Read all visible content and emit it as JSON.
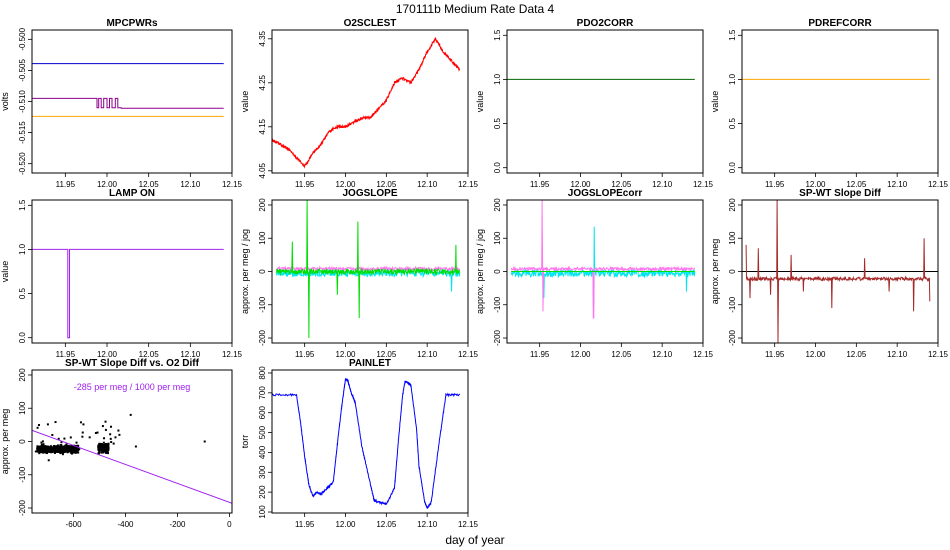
{
  "figure": {
    "title": "170111b   Medium Rate Data 4",
    "xlabel": "day of year"
  },
  "chart_data": [
    {
      "id": "mpcpwrs",
      "type": "line",
      "title": "MPCPWRs",
      "ylabel": "volts",
      "xlim": [
        11.91,
        12.15
      ],
      "ylim": [
        -0.5215,
        -0.4985
      ],
      "xticks": [
        11.95,
        12.0,
        12.05,
        12.1,
        12.15
      ],
      "xtick_labels": [
        "11.95",
        "12.00",
        "12.05",
        "12.10",
        "12.15"
      ],
      "yticks": [
        -0.52,
        -0.515,
        -0.51,
        -0.505,
        -0.5
      ],
      "ytick_labels": [
        "-0.520",
        "-0.515",
        "-0.510",
        "-0.505",
        "-0.500"
      ],
      "series": [
        {
          "color": "#0000cc",
          "x": [
            11.91,
            12.14
          ],
          "y": [
            -0.5039,
            -0.5039
          ]
        },
        {
          "color": "#8b008b",
          "x": [
            11.91,
            11.988,
            11.988,
            11.99,
            11.99,
            11.993,
            11.993,
            11.996,
            11.996,
            12.0,
            12.0,
            12.003,
            12.003,
            12.006,
            12.006,
            12.01,
            12.01,
            12.013,
            12.013,
            12.017,
            12.017,
            12.14
          ],
          "y": [
            -0.5095,
            -0.5095,
            -0.511,
            -0.511,
            -0.5095,
            -0.5095,
            -0.511,
            -0.511,
            -0.5095,
            -0.5095,
            -0.511,
            -0.511,
            -0.5095,
            -0.5095,
            -0.511,
            -0.511,
            -0.5095,
            -0.5095,
            -0.511,
            -0.511,
            -0.5111,
            -0.5111
          ]
        },
        {
          "color": "#ffa500",
          "x": [
            11.91,
            12.14
          ],
          "y": [
            -0.5124,
            -0.5124
          ]
        }
      ]
    },
    {
      "id": "o2sclest",
      "type": "line",
      "title": "O2SCLEST",
      "ylabel": "value",
      "xlim": [
        11.91,
        12.15
      ],
      "ylim": [
        4.045,
        4.37
      ],
      "xticks": [
        11.95,
        12.0,
        12.05,
        12.1,
        12.15
      ],
      "xtick_labels": [
        "11.95",
        "12.00",
        "12.05",
        "12.10",
        "12.15"
      ],
      "yticks": [
        4.05,
        4.15,
        4.25,
        4.35
      ],
      "ytick_labels": [
        "4.05",
        "4.15",
        "4.25",
        "4.35"
      ],
      "series": [
        {
          "color": "#ff0000",
          "x": [
            11.91,
            11.92,
            11.93,
            11.94,
            11.95,
            11.96,
            11.97,
            11.98,
            11.99,
            12.0,
            12.01,
            12.02,
            12.03,
            12.04,
            12.05,
            12.06,
            12.07,
            12.08,
            12.09,
            12.1,
            12.11,
            12.12,
            12.13,
            12.14
          ],
          "y": [
            4.12,
            4.11,
            4.1,
            4.08,
            4.06,
            4.09,
            4.11,
            4.14,
            4.15,
            4.15,
            4.16,
            4.17,
            4.17,
            4.19,
            4.21,
            4.25,
            4.26,
            4.25,
            4.28,
            4.32,
            4.35,
            4.32,
            4.3,
            4.28
          ]
        }
      ]
    },
    {
      "id": "pdo2corr",
      "type": "line",
      "title": "PDO2CORR",
      "ylabel": "value",
      "xlim": [
        11.91,
        12.15
      ],
      "ylim": [
        -0.06,
        1.56
      ],
      "xticks": [
        11.95,
        12.0,
        12.05,
        12.1,
        12.15
      ],
      "xtick_labels": [
        "11.95",
        "12.00",
        "12.05",
        "12.10",
        "12.15"
      ],
      "yticks": [
        0,
        0.5,
        1.0,
        1.5
      ],
      "ytick_labels": [
        "0.0",
        "0.5",
        "1.0",
        "1.5"
      ],
      "series": [
        {
          "color": "#006400",
          "x": [
            11.91,
            12.14
          ],
          "y": [
            1.0,
            1.0
          ]
        }
      ]
    },
    {
      "id": "pdrefcorr",
      "type": "line",
      "title": "PDREFCORR",
      "ylabel": "value",
      "xlim": [
        11.91,
        12.15
      ],
      "ylim": [
        -0.06,
        1.56
      ],
      "xticks": [
        11.95,
        12.0,
        12.05,
        12.1,
        12.15
      ],
      "xtick_labels": [
        "11.95",
        "12.00",
        "12.05",
        "12.10",
        "12.15"
      ],
      "yticks": [
        0,
        0.5,
        1.0,
        1.5
      ],
      "ytick_labels": [
        "0.0",
        "0.5",
        "1.0",
        "1.5"
      ],
      "series": [
        {
          "color": "#ffa500",
          "x": [
            11.91,
            12.14
          ],
          "y": [
            1.0,
            1.0
          ]
        }
      ]
    },
    {
      "id": "lamp_on",
      "type": "line",
      "title": "LAMP ON",
      "ylabel": "value",
      "xlim": [
        11.91,
        12.15
      ],
      "ylim": [
        -0.06,
        1.56
      ],
      "xticks": [
        11.95,
        12.0,
        12.05,
        12.1,
        12.15
      ],
      "xtick_labels": [
        "11.95",
        "12.00",
        "12.05",
        "12.10",
        "12.15"
      ],
      "yticks": [
        0,
        0.5,
        1.0,
        1.5
      ],
      "ytick_labels": [
        "0.0",
        "0.5",
        "1.0",
        "1.5"
      ],
      "series": [
        {
          "color": "#a020f0",
          "x": [
            11.91,
            11.953,
            11.953,
            11.955,
            11.955,
            12.14
          ],
          "y": [
            1.0,
            1.0,
            0.0,
            0.0,
            1.0,
            1.0
          ]
        }
      ]
    },
    {
      "id": "jogslope",
      "type": "line",
      "title": "JOGSLOPE",
      "ylabel": "approx. per meg / jog",
      "xlim": [
        11.91,
        12.15
      ],
      "ylim": [
        -215,
        215
      ],
      "xticks": [
        11.95,
        12.0,
        12.05,
        12.1,
        12.15
      ],
      "xtick_labels": [
        "11.95",
        "12.00",
        "12.05",
        "12.10",
        "12.15"
      ],
      "yticks": [
        -200,
        -100,
        0,
        100,
        200
      ],
      "ytick_labels": [
        "-200",
        "-100",
        "0",
        "100",
        "200"
      ],
      "series": [
        {
          "color": "#ff77ee",
          "base": 8,
          "noise": 10,
          "spikes": []
        },
        {
          "color": "#00e5ee",
          "base": -5,
          "noise": 20,
          "spikes": [
            [
              11.955,
              -90
            ],
            [
              12.13,
              -60
            ]
          ]
        },
        {
          "color": "#00dd00",
          "base": 0,
          "noise": 16,
          "spikes": [
            [
              11.953,
              215
            ],
            [
              11.955,
              -200
            ],
            [
              12.015,
              150
            ],
            [
              12.017,
              -140
            ],
            [
              11.935,
              90
            ],
            [
              11.99,
              -70
            ],
            [
              12.135,
              80
            ]
          ]
        }
      ]
    },
    {
      "id": "jogslopecorr",
      "type": "line",
      "title": "JOGSLOPEcorr",
      "ylabel": "approx. per meg / jog",
      "xlim": [
        11.91,
        12.15
      ],
      "ylim": [
        -215,
        215
      ],
      "xticks": [
        11.95,
        12.0,
        12.05,
        12.1,
        12.15
      ],
      "xtick_labels": [
        "11.95",
        "12.00",
        "12.05",
        "12.10",
        "12.15"
      ],
      "yticks": [
        -200,
        -100,
        0,
        100,
        200
      ],
      "ytick_labels": [
        "-200",
        "-100",
        "0",
        "100",
        "200"
      ],
      "series": [
        {
          "color": "#00e5ee",
          "base": -5,
          "noise": 22,
          "spikes": [
            [
              12.017,
              135
            ],
            [
              12.016,
              -100
            ],
            [
              11.955,
              -80
            ],
            [
              12.13,
              -60
            ]
          ]
        },
        {
          "color": "#ff77ee",
          "base": 8,
          "noise": 8,
          "spikes": [
            [
              11.953,
              215
            ],
            [
              11.954,
              -120
            ],
            [
              12.016,
              -140
            ]
          ]
        },
        {
          "color": "#00dd00",
          "base": 0,
          "noise": 0,
          "spikes": []
        }
      ]
    },
    {
      "id": "spwt_slope_diff",
      "type": "line",
      "title": "SP-WT Slope Diff",
      "ylabel": "approx. per meg",
      "xlim": [
        11.91,
        12.15
      ],
      "ylim": [
        -215,
        215
      ],
      "xticks": [
        11.95,
        12.0,
        12.05,
        12.1,
        12.15
      ],
      "xtick_labels": [
        "11.95",
        "12.00",
        "12.05",
        "12.10",
        "12.15"
      ],
      "yticks": [
        -200,
        -100,
        0,
        100,
        200
      ],
      "ytick_labels": [
        "-200",
        "-100",
        "0",
        "100",
        "200"
      ],
      "hline": 0,
      "series": [
        {
          "color": "#a52a2a",
          "base": -22,
          "noise": 10,
          "spikes": [
            [
              11.915,
              80
            ],
            [
              11.92,
              -80
            ],
            [
              11.93,
              70
            ],
            [
              11.945,
              -70
            ],
            [
              11.953,
              215
            ],
            [
              11.954,
              -215
            ],
            [
              11.97,
              50
            ],
            [
              11.985,
              -60
            ],
            [
              12.02,
              -110
            ],
            [
              12.06,
              40
            ],
            [
              12.09,
              -60
            ],
            [
              12.12,
              -120
            ],
            [
              12.133,
              100
            ],
            [
              12.14,
              -90
            ]
          ]
        }
      ]
    },
    {
      "id": "spwt_vs_o2",
      "type": "scatter",
      "title": "SP-WT Slope Diff vs. O2 Diff",
      "ylabel": "approx. per meg",
      "annotation": "-285 per meg / 1000 per meg",
      "xlim": [
        -760,
        10
      ],
      "ylim": [
        -215,
        215
      ],
      "xticks": [
        -600,
        -400,
        -200,
        0
      ],
      "xtick_labels": [
        "-600",
        "-400",
        "-200",
        "0"
      ],
      "yticks": [
        -200,
        -100,
        0,
        100,
        200
      ],
      "ytick_labels": [
        "-200",
        "-100",
        "0",
        "100",
        "200"
      ],
      "fit_line": {
        "color": "#a020f0",
        "slope": -0.285,
        "intercept": -183
      },
      "clusters": [
        {
          "x": [
            -740,
            -580
          ],
          "y": [
            -38,
            -8
          ],
          "n": 600
        },
        {
          "x": [
            -505,
            -465
          ],
          "y": [
            -40,
            0
          ],
          "n": 180
        },
        {
          "x": [
            -750,
            -420
          ],
          "y": [
            -110,
            120
          ],
          "n": 45
        }
      ],
      "points": [
        [
          -95,
          0
        ],
        [
          -360,
          -15
        ],
        [
          -380,
          80
        ]
      ]
    },
    {
      "id": "painlet",
      "type": "line",
      "title": "PAINLET",
      "ylabel": "torr",
      "xlim": [
        11.91,
        12.15
      ],
      "ylim": [
        95,
        815
      ],
      "xticks": [
        11.95,
        12.0,
        12.05,
        12.1,
        12.15
      ],
      "xtick_labels": [
        "11.95",
        "12.00",
        "12.05",
        "12.10",
        "12.15"
      ],
      "yticks": [
        100,
        200,
        300,
        400,
        500,
        600,
        700,
        800
      ],
      "ytick_labels": [
        "100",
        "200",
        "300",
        "400",
        "500",
        "600",
        "700",
        "800"
      ],
      "series": [
        {
          "color": "#0000ff",
          "x": [
            11.91,
            11.94,
            11.945,
            11.95,
            11.955,
            11.96,
            11.965,
            11.97,
            11.975,
            11.985,
            11.99,
            11.995,
            12.0,
            12.003,
            12.007,
            12.012,
            12.02,
            12.03,
            12.035,
            12.04,
            12.05,
            12.06,
            12.065,
            12.07,
            12.073,
            12.08,
            12.087,
            12.09,
            12.097,
            12.1,
            12.105,
            12.115,
            12.123,
            12.14
          ],
          "y": [
            690,
            690,
            550,
            380,
            240,
            180,
            200,
            190,
            210,
            250,
            440,
            620,
            770,
            760,
            700,
            650,
            430,
            250,
            160,
            150,
            140,
            220,
            470,
            690,
            760,
            740,
            520,
            330,
            150,
            120,
            150,
            460,
            690,
            690
          ]
        }
      ]
    }
  ]
}
